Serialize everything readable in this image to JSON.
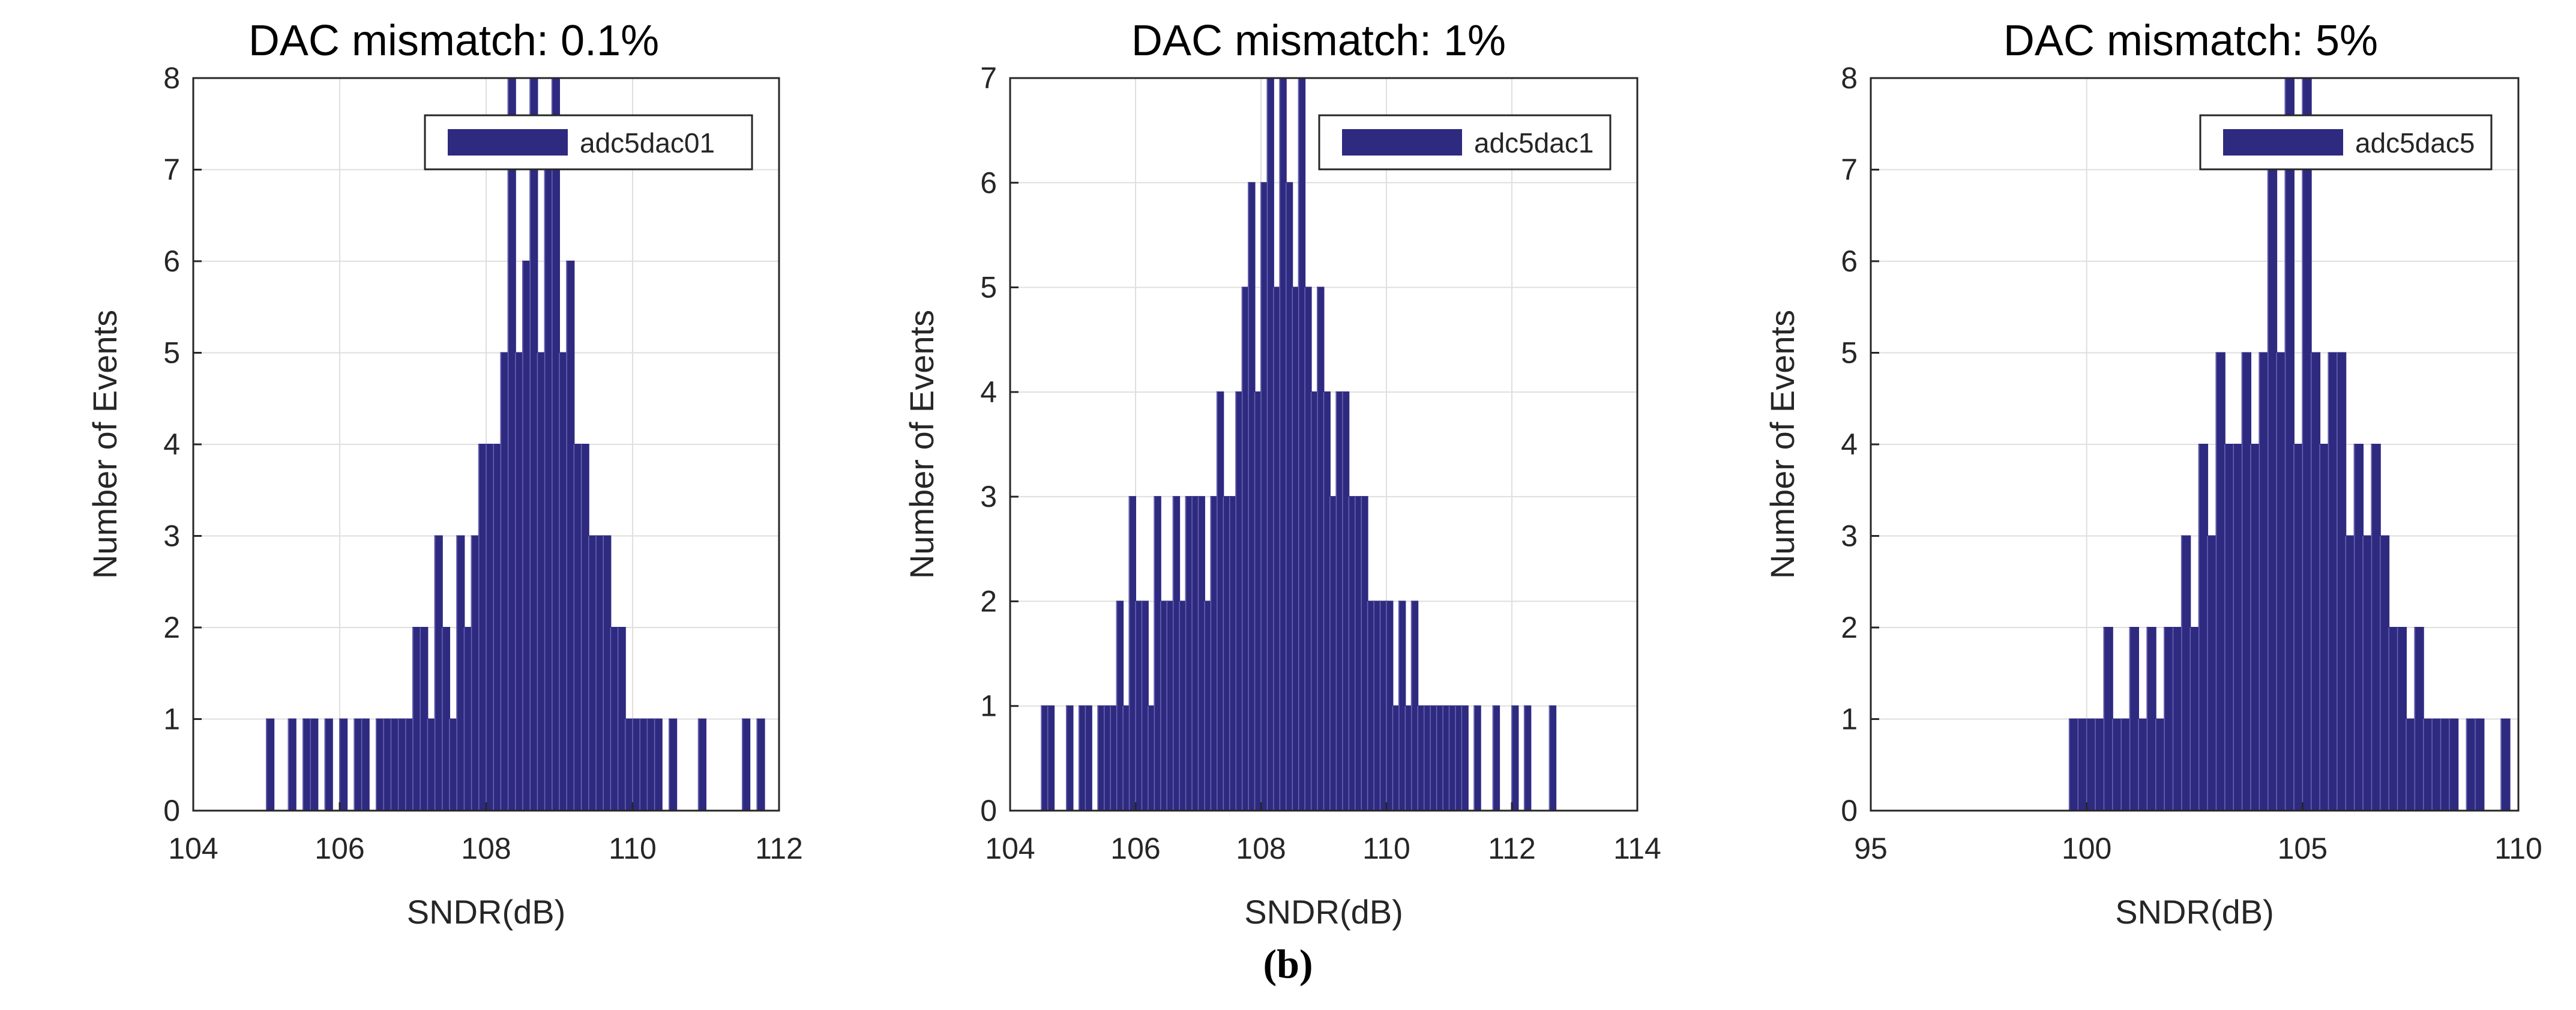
{
  "figure": {
    "caption": "(b)"
  },
  "chart_data": [
    {
      "type": "bar",
      "title": "DAC mismatch: 0.1%",
      "xlabel": "SNDR(dB)",
      "ylabel": "Number of Events",
      "xlim": [
        104,
        112
      ],
      "ylim": [
        0,
        8
      ],
      "xticks": [
        "104",
        "106",
        "108",
        "110",
        "112"
      ],
      "yticks": [
        "0",
        "1",
        "2",
        "3",
        "4",
        "5",
        "6",
        "7",
        "8"
      ],
      "grid": true,
      "legend": {
        "position": "top-right",
        "entries": [
          "adc5dac01"
        ]
      },
      "bar_color": "#2E2A80",
      "x": [
        105.0,
        105.1,
        105.2,
        105.3,
        105.4,
        105.5,
        105.6,
        105.7,
        105.8,
        105.9,
        106.0,
        106.1,
        106.2,
        106.3,
        106.4,
        106.5,
        106.6,
        106.7,
        106.8,
        106.9,
        107.0,
        107.1,
        107.2,
        107.3,
        107.4,
        107.5,
        107.6,
        107.7,
        107.8,
        107.9,
        108.0,
        108.1,
        108.2,
        108.3,
        108.4,
        108.5,
        108.6,
        108.7,
        108.8,
        108.9,
        109.0,
        109.1,
        109.2,
        109.3,
        109.4,
        109.5,
        109.6,
        109.7,
        109.8,
        109.9,
        110.0,
        110.1,
        110.2,
        110.3,
        110.4,
        110.5,
        110.6,
        110.7,
        110.8,
        110.9,
        111.0,
        111.1,
        111.2,
        111.3,
        111.4,
        111.5,
        111.6,
        111.7
      ],
      "values": [
        1,
        0,
        0,
        1,
        0,
        1,
        1,
        0,
        1,
        0,
        1,
        0,
        1,
        1,
        0,
        1,
        1,
        1,
        1,
        1,
        2,
        2,
        1,
        3,
        2,
        1,
        3,
        2,
        3,
        4,
        4,
        4,
        5,
        8,
        5,
        6,
        8,
        5,
        7,
        8,
        5,
        6,
        4,
        4,
        3,
        3,
        3,
        2,
        2,
        1,
        1,
        1,
        1,
        1,
        0,
        1,
        0,
        0,
        0,
        1,
        0,
        0,
        0,
        0,
        0,
        1,
        0,
        1
      ]
    },
    {
      "type": "bar",
      "title": "DAC mismatch: 1%",
      "xlabel": "SNDR(dB)",
      "ylabel": "Number of Events",
      "xlim": [
        104,
        114
      ],
      "ylim": [
        0,
        7
      ],
      "xticks": [
        "104",
        "106",
        "108",
        "110",
        "112",
        "114"
      ],
      "yticks": [
        "0",
        "1",
        "2",
        "3",
        "4",
        "5",
        "6",
        "7"
      ],
      "grid": true,
      "legend": {
        "position": "top-right",
        "entries": [
          "adc5dac1"
        ]
      },
      "bar_color": "#2E2A80",
      "x": [
        104.5,
        104.6,
        104.7,
        104.8,
        104.9,
        105.0,
        105.1,
        105.2,
        105.3,
        105.4,
        105.5,
        105.6,
        105.7,
        105.8,
        105.9,
        106.0,
        106.1,
        106.2,
        106.3,
        106.4,
        106.5,
        106.6,
        106.7,
        106.8,
        106.9,
        107.0,
        107.1,
        107.2,
        107.3,
        107.4,
        107.5,
        107.6,
        107.7,
        107.8,
        107.9,
        108.0,
        108.1,
        108.2,
        108.3,
        108.4,
        108.5,
        108.6,
        108.7,
        108.8,
        108.9,
        109.0,
        109.1,
        109.2,
        109.3,
        109.4,
        109.5,
        109.6,
        109.7,
        109.8,
        109.9,
        110.0,
        110.1,
        110.2,
        110.3,
        110.4,
        110.5,
        110.6,
        110.7,
        110.8,
        110.9,
        111.0,
        111.1,
        111.2,
        111.3,
        111.4,
        111.5,
        111.6,
        111.7,
        111.8,
        111.9,
        112.0,
        112.1,
        112.2,
        112.3,
        112.4,
        112.5,
        112.6
      ],
      "values": [
        1,
        1,
        0,
        0,
        1,
        0,
        1,
        1,
        0,
        1,
        1,
        1,
        2,
        1,
        3,
        2,
        2,
        1,
        3,
        2,
        2,
        3,
        2,
        3,
        3,
        3,
        2,
        3,
        4,
        3,
        3,
        4,
        5,
        6,
        4,
        6,
        7,
        5,
        7,
        6,
        5,
        7,
        5,
        4,
        5,
        4,
        3,
        4,
        4,
        3,
        3,
        3,
        2,
        2,
        2,
        2,
        1,
        2,
        1,
        2,
        1,
        1,
        1,
        1,
        1,
        1,
        1,
        1,
        0,
        1,
        0,
        0,
        1,
        0,
        0,
        1,
        0,
        1,
        0,
        0,
        0,
        1
      ]
    },
    {
      "type": "bar",
      "title": "DAC mismatch: 5%",
      "xlabel": "SNDR(dB)",
      "ylabel": "Number of Events",
      "xlim": [
        95,
        110
      ],
      "ylim": [
        0,
        8
      ],
      "xticks": [
        "95",
        "100",
        "105",
        "110"
      ],
      "yticks": [
        "0",
        "1",
        "2",
        "3",
        "4",
        "5",
        "6",
        "7",
        "8"
      ],
      "grid": true,
      "legend": {
        "position": "top-right",
        "entries": [
          "adc5dac5"
        ]
      },
      "bar_color": "#2E2A80",
      "x": [
        99.6,
        99.8,
        100.0,
        100.2,
        100.4,
        100.6,
        100.8,
        101.0,
        101.2,
        101.4,
        101.6,
        101.8,
        102.0,
        102.2,
        102.4,
        102.6,
        102.8,
        103.0,
        103.2,
        103.4,
        103.6,
        103.8,
        104.0,
        104.2,
        104.4,
        104.6,
        104.8,
        105.0,
        105.2,
        105.4,
        105.6,
        105.8,
        106.0,
        106.2,
        106.4,
        106.6,
        106.8,
        107.0,
        107.2,
        107.4,
        107.6,
        107.8,
        108.0,
        108.2,
        108.4,
        108.6,
        108.8,
        109.0,
        109.2,
        109.4,
        109.6,
        109.8
      ],
      "values": [
        1,
        1,
        1,
        1,
        2,
        1,
        1,
        2,
        1,
        2,
        1,
        2,
        2,
        3,
        2,
        4,
        3,
        5,
        4,
        4,
        5,
        4,
        5,
        7,
        5,
        8,
        4,
        8,
        5,
        4,
        5,
        5,
        3,
        4,
        3,
        4,
        3,
        2,
        2,
        1,
        2,
        1,
        1,
        1,
        1,
        0,
        1,
        1,
        0,
        0,
        1,
        0
      ]
    }
  ]
}
